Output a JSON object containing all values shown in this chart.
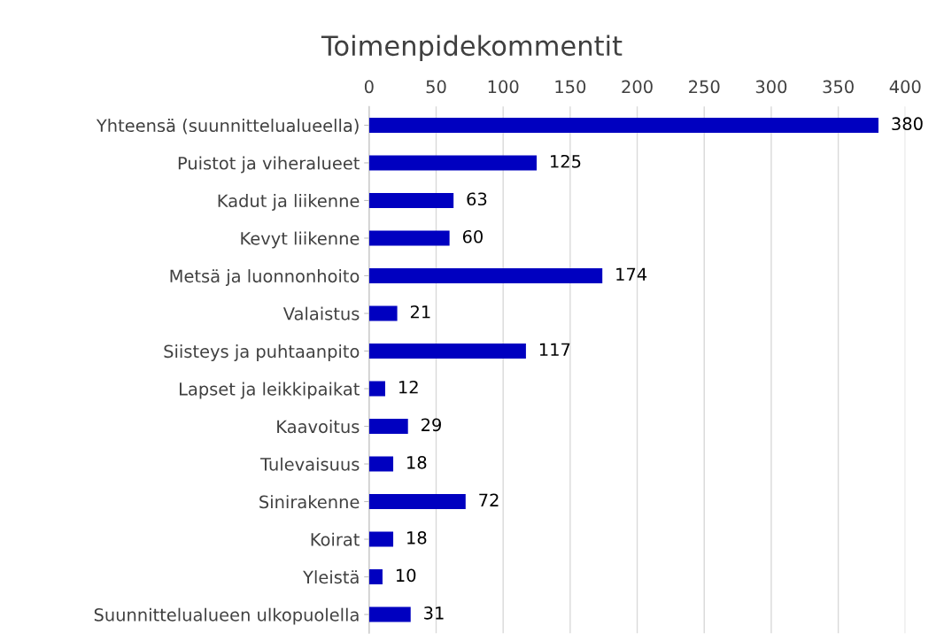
{
  "chart_data": {
    "type": "bar",
    "orientation": "horizontal",
    "title": "Toimenpidekommentit",
    "categories": [
      "Yhteensä (suunnittelualueella)",
      "Puistot ja viheralueet",
      "Kadut ja liikenne",
      "Kevyt liikenne",
      "Metsä ja luonnonhoito",
      "Valaistus",
      "Siisteys ja puhtaanpito",
      "Lapset ja leikkipaikat",
      "Kaavoitus",
      "Tulevaisuus",
      "Sinirakenne",
      "Koirat",
      "Yleistä",
      "Suunnittelualueen ulkopuolella"
    ],
    "values": [
      380,
      125,
      63,
      60,
      174,
      21,
      117,
      12,
      29,
      18,
      72,
      18,
      10,
      31
    ],
    "color": "#0000c0",
    "xlim": [
      0,
      400
    ],
    "xticks": [
      0,
      50,
      100,
      150,
      200,
      250,
      300,
      350,
      400
    ],
    "grid": "x",
    "data_labels": true,
    "legend": false
  }
}
